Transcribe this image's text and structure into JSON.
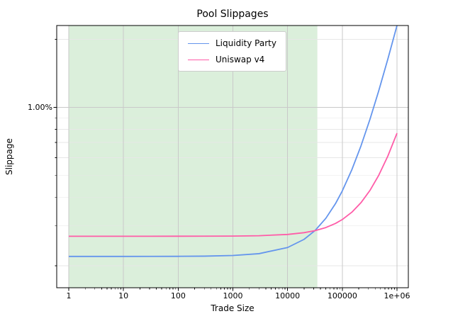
{
  "title": "Pool Slippages",
  "chart_data": {
    "type": "line",
    "title": "Pool Slippages",
    "xlabel": "Trade Size",
    "ylabel": "Slippage",
    "xscale": "log",
    "yscale": "log",
    "grid": true,
    "legend_position": "upper center",
    "x_range": [
      1,
      1000000
    ],
    "y_range_percent": [
      0.16,
      2.3
    ],
    "x_ticks": [
      {
        "value": 1,
        "label": "1"
      },
      {
        "value": 10,
        "label": "10"
      },
      {
        "value": 100,
        "label": "100"
      },
      {
        "value": 1000,
        "label": "1000"
      },
      {
        "value": 10000,
        "label": "10000"
      },
      {
        "value": 100000,
        "label": "100000"
      },
      {
        "value": 1000000,
        "label": "1e+06"
      }
    ],
    "y_ticks": [
      {
        "value": 1.0,
        "label": "1.00%"
      }
    ],
    "y_minor_gridlines_percent": [
      0.2,
      0.3,
      0.4,
      0.5,
      0.6,
      0.7,
      0.8,
      0.9,
      2.0
    ],
    "shaded_region": {
      "x_start": 1,
      "x_end": 35000,
      "color": "#2ca02c",
      "opacity": 0.17
    },
    "series": [
      {
        "name": "Liquidity Party",
        "color": "#6495ed",
        "x": [
          1,
          3,
          10,
          30,
          100,
          300,
          1000,
          3000,
          10000,
          20000,
          31623,
          50000,
          75000,
          100000,
          150000,
          220000,
          320000,
          460000,
          680000,
          1000000
        ],
        "y_percent": [
          0.22,
          0.22,
          0.22,
          0.2201,
          0.2202,
          0.2206,
          0.2221,
          0.2262,
          0.2408,
          0.2616,
          0.2858,
          0.324,
          0.376,
          0.428,
          0.532,
          0.6776,
          0.8856,
          1.1768,
          1.6344,
          2.3
        ]
      },
      {
        "name": "Uniswap v4",
        "color": "#ff5ca8",
        "x": [
          1,
          3,
          10,
          30,
          100,
          300,
          1000,
          3000,
          10000,
          20000,
          31623,
          50000,
          75000,
          100000,
          150000,
          220000,
          320000,
          460000,
          680000,
          1000000
        ],
        "y_percent": [
          0.27,
          0.27,
          0.27,
          0.27,
          0.2701,
          0.2702,
          0.2705,
          0.2715,
          0.275,
          0.28,
          0.2858,
          0.295,
          0.3075,
          0.32,
          0.345,
          0.38,
          0.43,
          0.5,
          0.61,
          0.77
        ]
      }
    ]
  }
}
